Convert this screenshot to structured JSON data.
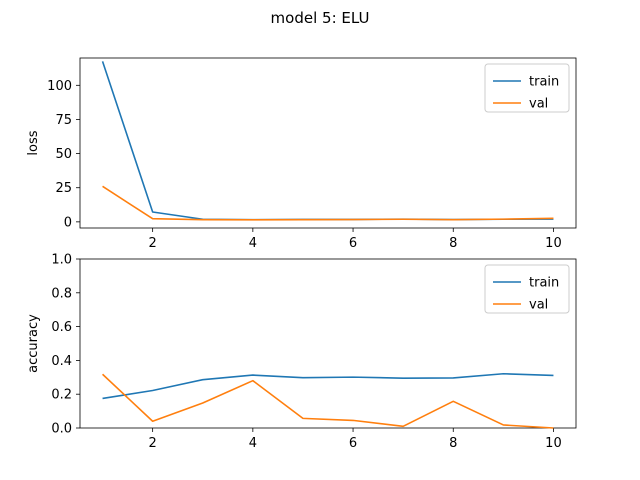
{
  "figure": {
    "title": "model 5: ELU"
  },
  "chart_data": [
    {
      "type": "line",
      "title": "",
      "xlabel": "",
      "ylabel": "loss",
      "x": [
        1,
        2,
        3,
        4,
        5,
        6,
        7,
        8,
        9,
        10
      ],
      "xlim": [
        0.55,
        10.45
      ],
      "ylim": [
        -4.5,
        120
      ],
      "xticks": [
        "2",
        "4",
        "6",
        "8",
        "10"
      ],
      "yticks": [
        "0",
        "25",
        "50",
        "75",
        "100"
      ],
      "grid": false,
      "legend_position": "top-right",
      "series": [
        {
          "name": "train",
          "color": "#1f77b4",
          "values": [
            117.5,
            7.2,
            1.9,
            1.6,
            1.8,
            1.8,
            2.0,
            1.7,
            1.9,
            2.0
          ]
        },
        {
          "name": "val",
          "color": "#ff7f0e",
          "values": [
            26.0,
            2.3,
            1.6,
            1.5,
            1.6,
            1.7,
            1.9,
            1.6,
            2.0,
            2.6
          ]
        }
      ]
    },
    {
      "type": "line",
      "title": "",
      "xlabel": "",
      "ylabel": "accuracy",
      "x": [
        1,
        2,
        3,
        4,
        5,
        6,
        7,
        8,
        9,
        10
      ],
      "xlim": [
        0.55,
        10.45
      ],
      "ylim": [
        0.0,
        1.0
      ],
      "xticks": [
        "2",
        "4",
        "6",
        "8",
        "10"
      ],
      "yticks": [
        "0.0",
        "0.2",
        "0.4",
        "0.6",
        "0.8",
        "1.0"
      ],
      "grid": false,
      "legend_position": "top-right",
      "series": [
        {
          "name": "train",
          "color": "#1f77b4",
          "values": [
            0.175,
            0.222,
            0.286,
            0.313,
            0.298,
            0.301,
            0.295,
            0.296,
            0.321,
            0.311
          ]
        },
        {
          "name": "val",
          "color": "#ff7f0e",
          "values": [
            0.318,
            0.04,
            0.148,
            0.28,
            0.057,
            0.045,
            0.01,
            0.158,
            0.018,
            0.0
          ]
        }
      ]
    }
  ]
}
